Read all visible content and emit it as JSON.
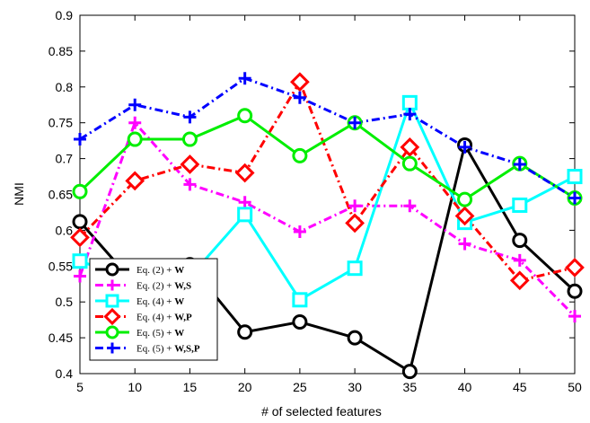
{
  "chart_data": {
    "type": "line",
    "xlabel": "# of selected features",
    "ylabel": "NMI",
    "x": [
      5,
      10,
      15,
      20,
      25,
      30,
      35,
      40,
      45,
      50
    ],
    "xlim": [
      5,
      50
    ],
    "ylim": [
      0.4,
      0.9
    ],
    "xticks": [
      "5",
      "10",
      "15",
      "20",
      "25",
      "30",
      "35",
      "40",
      "45",
      "50"
    ],
    "yticks": [
      "0.4",
      "0.45",
      "0.5",
      "0.55",
      "0.6",
      "0.65",
      "0.7",
      "0.75",
      "0.8",
      "0.85",
      "0.9"
    ],
    "grid": false,
    "legend_position": "lower-left",
    "series": [
      {
        "name": "Eq. (2) + W",
        "color": "#000000",
        "marker": "circle",
        "line": "solid",
        "values": [
          0.612,
          0.525,
          0.552,
          0.458,
          0.472,
          0.45,
          0.403,
          0.719,
          0.586,
          0.515
        ]
      },
      {
        "name": "Eq. (2) + W,S",
        "color": "#ff00ff",
        "marker": "plus",
        "line": "dashdot",
        "values": [
          0.536,
          0.75,
          0.664,
          0.639,
          0.598,
          0.634,
          0.634,
          0.581,
          0.558,
          0.48
        ]
      },
      {
        "name": "Eq. (4) + W",
        "color": "#00ffff",
        "marker": "square",
        "line": "solid",
        "values": [
          0.557,
          0.53,
          0.535,
          0.622,
          0.503,
          0.547,
          0.778,
          0.611,
          0.635,
          0.675
        ]
      },
      {
        "name": "Eq. (4) + W,P",
        "color": "#ff0000",
        "marker": "diamond",
        "line": "dashdot",
        "values": [
          0.59,
          0.669,
          0.692,
          0.68,
          0.807,
          0.61,
          0.716,
          0.62,
          0.53,
          0.548
        ]
      },
      {
        "name": "Eq. (5) + W",
        "color": "#00ee00",
        "marker": "circle",
        "line": "solid",
        "values": [
          0.654,
          0.727,
          0.727,
          0.76,
          0.704,
          0.75,
          0.693,
          0.643,
          0.693,
          0.645
        ]
      },
      {
        "name": "Eq. (5) + W,S,P",
        "color": "#0000ff",
        "marker": "plus",
        "line": "dashdot",
        "values": [
          0.727,
          0.775,
          0.758,
          0.812,
          0.785,
          0.75,
          0.762,
          0.716,
          0.692,
          0.645
        ]
      }
    ]
  }
}
